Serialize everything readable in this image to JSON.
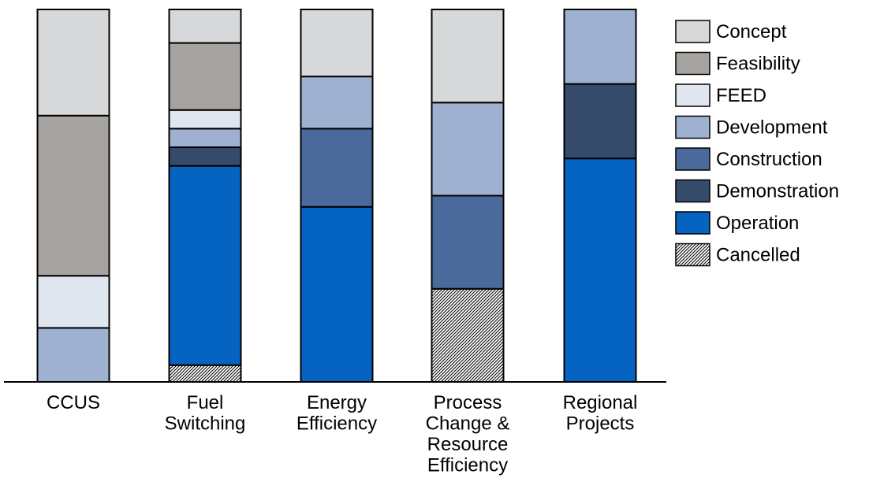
{
  "chart_data": {
    "type": "bar",
    "stacked": true,
    "categories": [
      "CCUS",
      "Fuel Switching",
      "Energy Efficiency",
      "Process Change & Resource Efficiency",
      "Regional Projects"
    ],
    "category_label_lines": [
      [
        "CCUS"
      ],
      [
        "Fuel",
        "Switching"
      ],
      [
        "Energy",
        "Efficiency"
      ],
      [
        "Process",
        "Change &",
        "Resource",
        "Efficiency"
      ],
      [
        "Regional",
        "Projects"
      ]
    ],
    "ylim": [
      0,
      100
    ],
    "series": [
      {
        "name": "Cancelled",
        "color": "#ffffff",
        "pattern": "hatched",
        "values": [
          0,
          4.5,
          0,
          25,
          0
        ]
      },
      {
        "name": "Operation",
        "color": "#0563c1",
        "values": [
          0,
          53.5,
          47,
          0,
          60
        ]
      },
      {
        "name": "Demonstration",
        "color": "#364a6b",
        "values": [
          0,
          5,
          0,
          0,
          20
        ]
      },
      {
        "name": "Construction",
        "color": "#4a6a9b",
        "values": [
          0,
          0,
          21,
          25,
          0
        ]
      },
      {
        "name": "Development",
        "color": "#9eb1d0",
        "values": [
          14.5,
          5,
          14,
          25,
          20
        ]
      },
      {
        "name": "FEED",
        "color": "#e0e6f0",
        "values": [
          14,
          5,
          0,
          0,
          0
        ]
      },
      {
        "name": "Feasibility",
        "color": "#a6a3a1",
        "values": [
          43,
          18,
          0,
          0,
          0
        ]
      },
      {
        "name": "Concept",
        "color": "#d7d8da",
        "values": [
          28.5,
          9,
          18,
          25,
          0
        ]
      }
    ],
    "legend_order": [
      "Concept",
      "Feasibility",
      "FEED",
      "Development",
      "Construction",
      "Demonstration",
      "Operation",
      "Cancelled"
    ],
    "legend_position": "right",
    "grid": false
  }
}
